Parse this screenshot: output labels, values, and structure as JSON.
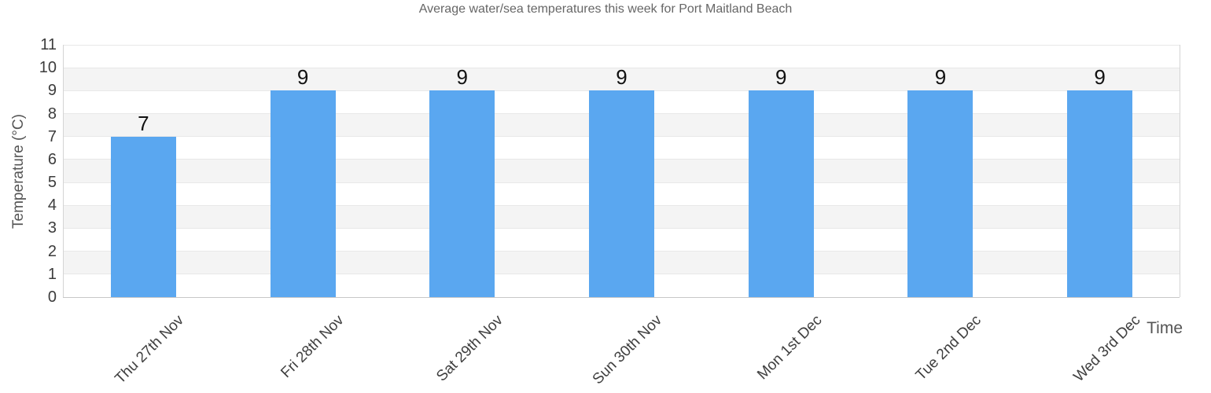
{
  "title": "Average water/sea temperatures this week for Port Maitland Beach",
  "chart_data": {
    "type": "bar",
    "title": "Average water/sea temperatures this week for Port Maitland Beach",
    "categories": [
      "Thu 27th Nov",
      "Fri 28th Nov",
      "Sat 29th Nov",
      "Sun 30th Nov",
      "Mon 1st Dec",
      "Tue 2nd Dec",
      "Wed 3rd Dec"
    ],
    "values": [
      7,
      9,
      9,
      9,
      9,
      9,
      9
    ],
    "xlabel": "Time",
    "ylabel": "Temperature (°C)",
    "ylim": [
      0,
      11
    ],
    "ytick_step": 1,
    "yticks": [
      0,
      1,
      2,
      3,
      4,
      5,
      6,
      7,
      8,
      9,
      10,
      11
    ],
    "grid": true,
    "band_intervals": [
      [
        1,
        2
      ],
      [
        3,
        4
      ],
      [
        5,
        6
      ],
      [
        7,
        8
      ],
      [
        9,
        10
      ]
    ],
    "legend": "none",
    "data_labels_shown": true
  },
  "colors": {
    "bar": "#5AA7F0",
    "band": "#f4f4f4",
    "gridline": "#e8e8e8",
    "axis_line": "#c8c8c8",
    "title_text": "#666666",
    "tick_text": "#3c3c3c",
    "axis_title_text": "#555555",
    "data_label_text": "#111111"
  }
}
